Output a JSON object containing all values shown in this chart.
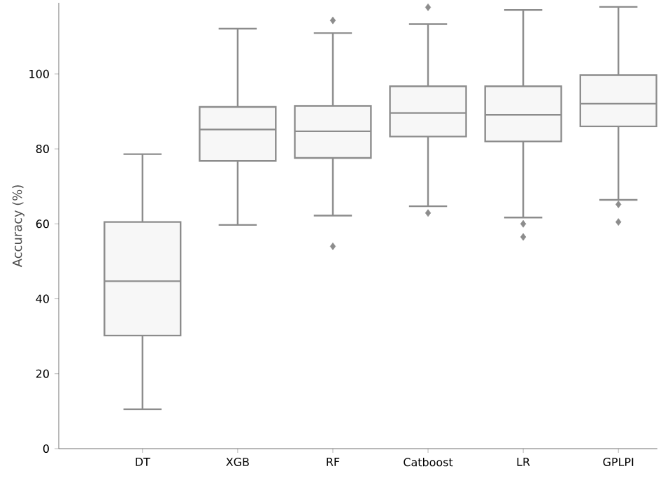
{
  "chart_data": {
    "type": "box",
    "ylabel": "Accuracy (%)",
    "categories": [
      "DT",
      "XGB",
      "RF",
      "Catboost",
      "LR",
      "GPLPI"
    ],
    "boxes": [
      {
        "low": 10.5,
        "q1": 30.2,
        "median": 44.7,
        "q3": 60.5,
        "high": 78.6
      },
      {
        "low": 59.7,
        "q1": 76.8,
        "median": 85.2,
        "q3": 91.2,
        "high": 112.1
      },
      {
        "low": 62.2,
        "q1": 77.6,
        "median": 84.7,
        "q3": 91.5,
        "high": 110.9,
        "outliers": [
          114.3,
          54.0
        ]
      },
      {
        "low": 64.7,
        "q1": 83.3,
        "median": 89.6,
        "q3": 96.7,
        "high": 113.3,
        "outliers": [
          117.8,
          62.9
        ]
      },
      {
        "low": 61.7,
        "q1": 82.0,
        "median": 89.1,
        "q3": 96.7,
        "high": 117.1,
        "outliers": [
          60.0,
          56.5
        ]
      },
      {
        "low": 66.4,
        "q1": 86.0,
        "median": 92.1,
        "q3": 99.7,
        "high": 117.9,
        "outliers": [
          65.2,
          60.5
        ]
      }
    ],
    "ylim": [
      0,
      119
    ],
    "yticks": [
      0,
      20,
      40,
      60,
      80,
      100
    ],
    "grid": false
  }
}
